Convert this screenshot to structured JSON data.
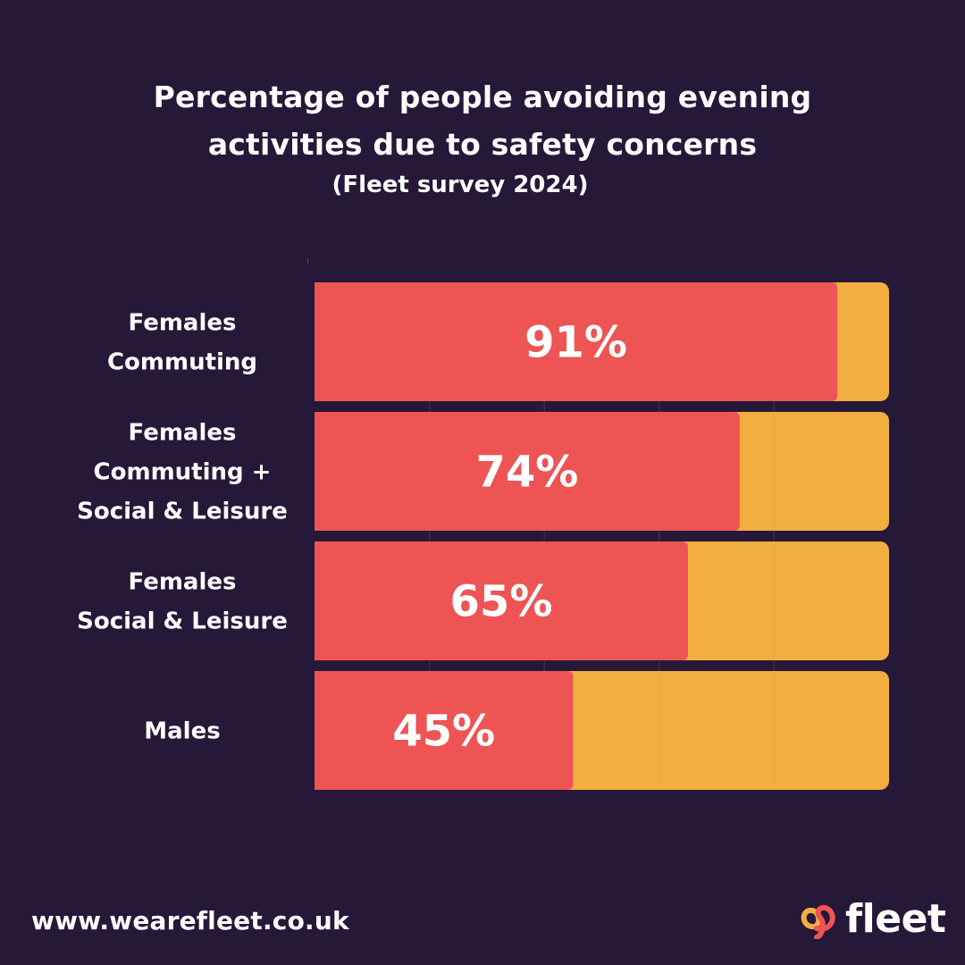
{
  "chart_data": {
    "type": "bar",
    "orientation": "horizontal",
    "stacked": true,
    "title": "Percentage of people avoiding evening activities due to safety concerns",
    "title_lines": [
      "Percentage of people avoiding evening",
      "activities due to safety concerns"
    ],
    "subtitle": "(Fleet survey 2024)",
    "xlabel": "",
    "ylabel": "",
    "xlim": [
      0,
      100
    ],
    "grid": true,
    "categories": [
      [
        "Females",
        "Commuting"
      ],
      [
        "Females",
        "Commuting +",
        "Social & Leisure"
      ],
      [
        "Females",
        "Social & Leisure"
      ],
      [
        "Males"
      ]
    ],
    "values": [
      91,
      74,
      65,
      45
    ],
    "value_labels": [
      "91%",
      "74%",
      "65%",
      "45%"
    ],
    "total": 100,
    "colors": {
      "bar": "#ee5454",
      "remainder": "#f2ae40",
      "background": "#251838",
      "grid": "#3a2d4e"
    }
  },
  "footer": {
    "url": "www.wearefleet.co.uk"
  },
  "logo": {
    "word": "fleet",
    "icon": "fleet-swirl-icon",
    "colors": [
      "#f2ae40",
      "#ee5454"
    ]
  }
}
